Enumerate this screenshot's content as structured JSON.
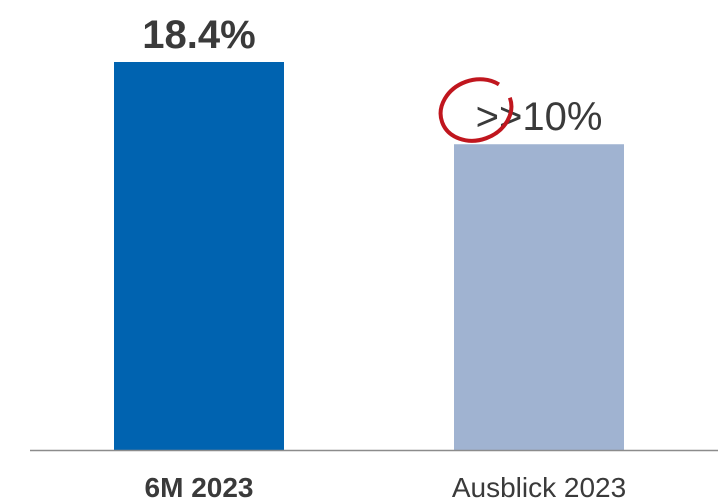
{
  "chart_data": {
    "type": "bar",
    "categories": [
      "6M 2023",
      "Ausblick 2023"
    ],
    "values": [
      18.4,
      14.5
    ],
    "value_labels": [
      "18.4%",
      null
    ],
    "annotation": ">>10%",
    "colors": [
      "#0063b0",
      "#a0b3d1"
    ]
  }
}
